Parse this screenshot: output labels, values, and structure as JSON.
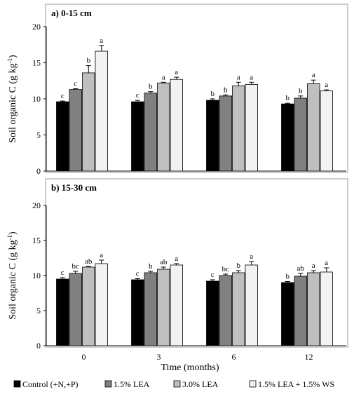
{
  "chart_data": [
    {
      "type": "bar",
      "title": "a) 0-15 cm",
      "ylabel": "Soil organic C (g kg",
      "ylabel_sup": "-1",
      "ylabel_close": ")",
      "ylim": [
        0,
        20
      ],
      "yticks": [
        "0",
        "5",
        "10",
        "15",
        "20"
      ],
      "categories": [
        "0",
        "3",
        "6",
        "12"
      ],
      "series": [
        {
          "name": "Control (+N,+P)",
          "values": [
            9.6,
            9.6,
            9.8,
            9.3
          ],
          "errors": [
            0.1,
            0.2,
            0.2,
            0.1
          ],
          "letters": [
            "c",
            "c",
            "b",
            "b"
          ]
        },
        {
          "name": "1.5% LEA",
          "values": [
            11.3,
            10.8,
            10.4,
            10.1
          ],
          "errors": [
            0.1,
            0.2,
            0.15,
            0.3
          ],
          "letters": [
            "c",
            "b",
            "b",
            "b"
          ]
        },
        {
          "name": "3.0% LEA",
          "values": [
            13.6,
            12.2,
            11.8,
            12.1
          ],
          "errors": [
            1.0,
            0.1,
            0.5,
            0.5
          ],
          "letters": [
            "b",
            "a",
            "a",
            "a"
          ]
        },
        {
          "name": "1.5% LEA + 1.5% WS",
          "values": [
            16.6,
            12.7,
            12.0,
            11.1
          ],
          "errors": [
            0.8,
            0.3,
            0.3,
            0.15
          ],
          "letters": [
            "a",
            "a",
            "a",
            "a"
          ]
        }
      ]
    },
    {
      "type": "bar",
      "title": "b) 15-30 cm",
      "ylabel": "Soil organic C (g kg",
      "ylabel_sup": "-1",
      "ylabel_close": ")",
      "ylim": [
        0,
        20
      ],
      "yticks": [
        "0",
        "5",
        "10",
        "15",
        "20"
      ],
      "xlabel": "Time (months)",
      "categories": [
        "0",
        "3",
        "6",
        "12"
      ],
      "series": [
        {
          "name": "Control (+N,+P)",
          "values": [
            9.5,
            9.4,
            9.2,
            9.0
          ],
          "errors": [
            0.2,
            0.15,
            0.2,
            0.15
          ],
          "letters": [
            "c",
            "c",
            "c",
            "b"
          ]
        },
        {
          "name": "1.5% LEA",
          "values": [
            10.3,
            10.4,
            10.0,
            9.9
          ],
          "errors": [
            0.3,
            0.2,
            0.2,
            0.4
          ],
          "letters": [
            "bc",
            "b",
            "bc",
            "ab"
          ]
        },
        {
          "name": "3.0% LEA",
          "values": [
            11.2,
            10.9,
            10.4,
            10.4
          ],
          "errors": [
            0.1,
            0.3,
            0.3,
            0.3
          ],
          "letters": [
            "ab",
            "ab",
            "b",
            "a"
          ]
        },
        {
          "name": "1.5% LEA + 1.5% WS",
          "values": [
            11.7,
            11.5,
            11.5,
            10.5
          ],
          "errors": [
            0.5,
            0.2,
            0.5,
            0.6
          ],
          "letters": [
            "a",
            "a",
            "a",
            "a"
          ]
        }
      ]
    }
  ],
  "legend": [
    {
      "label": "Control (+N,+P)",
      "color": "#000000"
    },
    {
      "label": "1.5% LEA",
      "color": "#808080"
    },
    {
      "label": "3.0% LEA",
      "color": "#bfbfbf"
    },
    {
      "label": "1.5% LEA + 1.5% WS",
      "color": "#f2f2f2"
    }
  ],
  "colors": {
    "series": [
      "#000000",
      "#808080",
      "#bfbfbf",
      "#f2f2f2"
    ],
    "frame": "#999999"
  }
}
